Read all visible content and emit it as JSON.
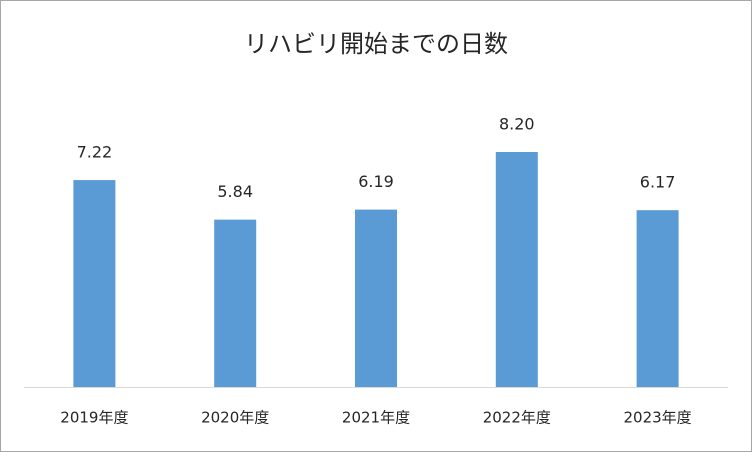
{
  "chart_data": {
    "type": "bar",
    "title": "リハビリ開始までの日数",
    "categories": [
      "2019年度",
      "2020年度",
      "2021年度",
      "2022年度",
      "2023年度"
    ],
    "values": [
      7.22,
      5.84,
      6.19,
      8.2,
      6.17
    ],
    "value_labels": [
      "7.22",
      "5.84",
      "6.19",
      "8.20",
      "6.17"
    ],
    "color": "#5b9bd5"
  }
}
